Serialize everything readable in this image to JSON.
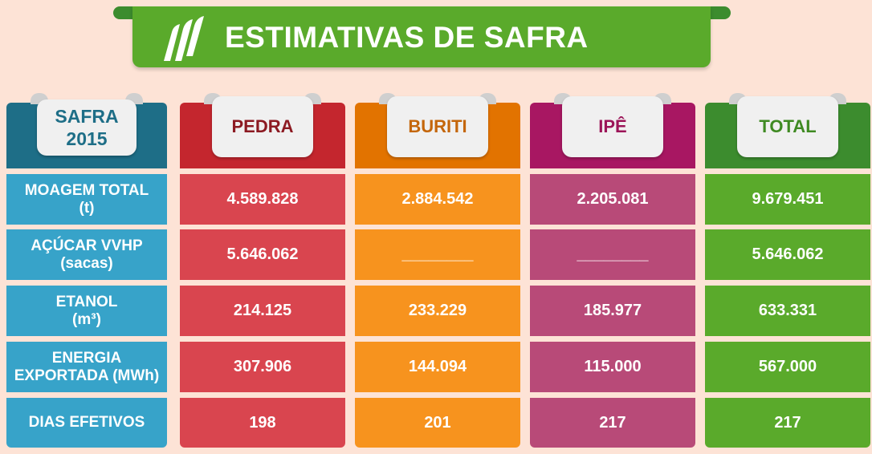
{
  "title": "ESTIMATIVAS DE SAFRA",
  "colors": {
    "background": "#fde3d6",
    "banner": "#5aaa2b",
    "label_column": "#37a3c9",
    "label_header": "#1e6e87",
    "pedra": "#d9454f",
    "buriti": "#f7931e",
    "ipe": "#b84a78",
    "total": "#5aaa2b"
  },
  "corner_header": {
    "line1": "SAFRA",
    "line2": "2015"
  },
  "columns": [
    {
      "label": "PEDRA",
      "text_color": "#8c1a22",
      "head_color": "#c4262e",
      "cell_color": "#d9454f"
    },
    {
      "label": "BURITI",
      "text_color": "#c4660a",
      "head_color": "#e27300",
      "cell_color": "#f7931e"
    },
    {
      "label": "IPÊ",
      "text_color": "#9c1458",
      "head_color": "#a81762",
      "cell_color": "#b84a78"
    },
    {
      "label": "TOTAL",
      "text_color": "#3f8a22",
      "head_color": "#3c8c2e",
      "cell_color": "#5aaa2b"
    }
  ],
  "rows": [
    {
      "label": "MOAGEM TOTAL\n(t)",
      "values": [
        "4.589.828",
        "2.884.542",
        "2.205.081",
        "9.679.451"
      ]
    },
    {
      "label": "AÇÚCAR VVHP\n(sacas)",
      "values": [
        "5.646.062",
        "________",
        "________",
        "5.646.062"
      ]
    },
    {
      "label": "ETANOL\n(m³)",
      "values": [
        "214.125",
        "233.229",
        "185.977",
        "633.331"
      ]
    },
    {
      "label": "ENERGIA\nEXPORTADA (MWh)",
      "values": [
        "307.906",
        "144.094",
        "115.000",
        "567.000"
      ]
    },
    {
      "label": "DIAS EFETIVOS",
      "values": [
        "198",
        "201",
        "217",
        "217"
      ]
    }
  ]
}
